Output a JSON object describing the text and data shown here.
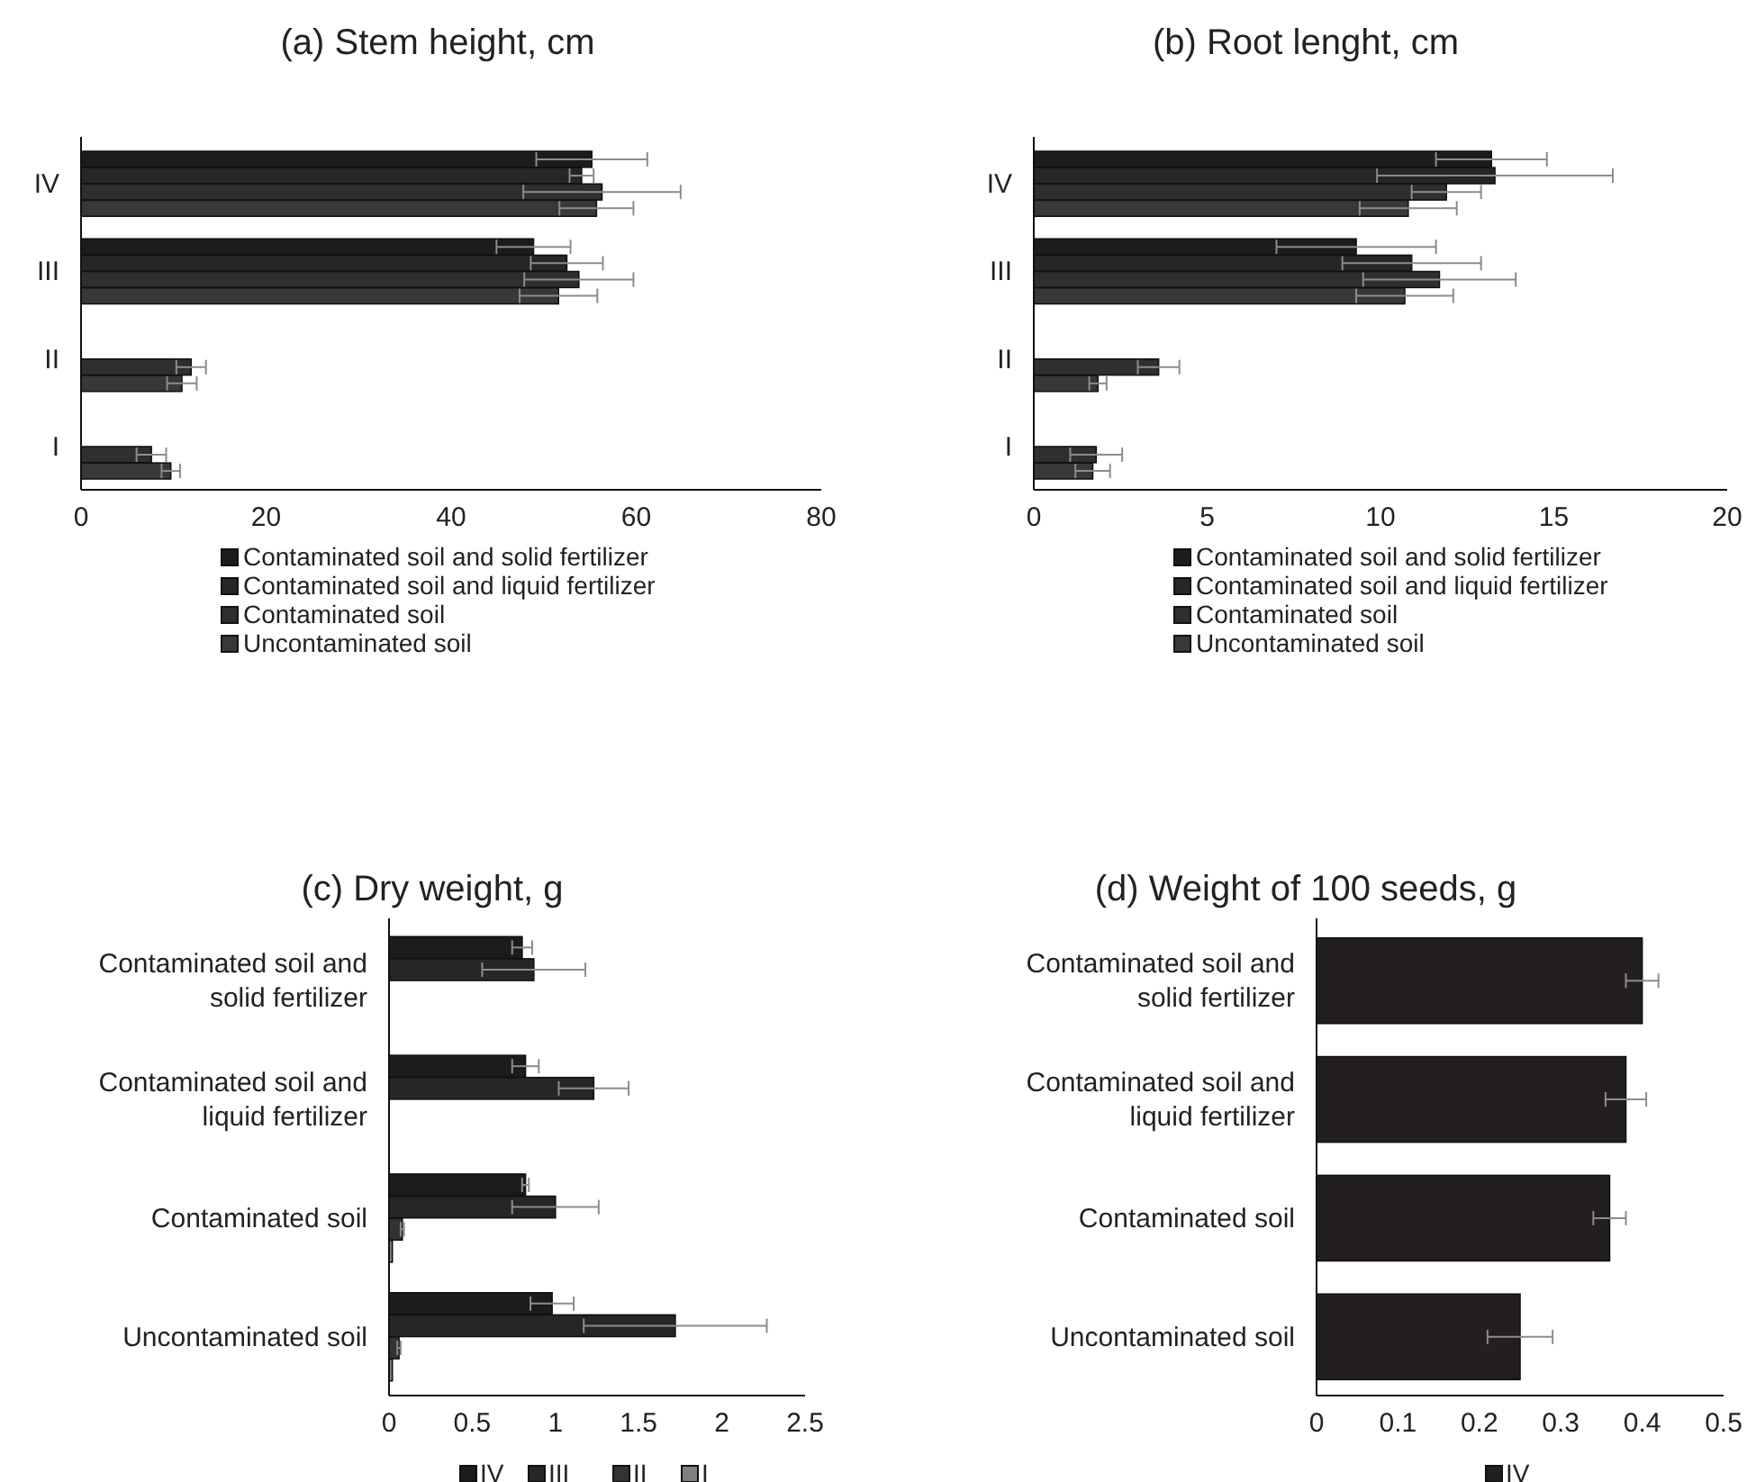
{
  "chart_data": [
    {
      "type": "bar",
      "orientation": "horizontal",
      "title": "(a) Stem height, cm",
      "categories": [
        "IV",
        "III",
        "II",
        "I"
      ],
      "xlim": [
        0,
        80
      ],
      "xticks": [
        0,
        20,
        40,
        60,
        80
      ],
      "grid": false,
      "legend": "bottom",
      "series": [
        {
          "name": "Contaminated soil and solid fertilizer",
          "color": "#1c1c1c",
          "values": [
            55.2,
            48.9,
            null,
            null
          ],
          "errors": [
            6,
            4,
            null,
            null
          ]
        },
        {
          "name": "Contaminated soil and liquid fertilizer",
          "color": "#262626",
          "values": [
            54.1,
            52.5,
            null,
            null
          ],
          "errors": [
            1.3,
            3.9,
            null,
            null
          ]
        },
        {
          "name": "Contaminated soil",
          "color": "#2e3030",
          "values": [
            56.3,
            53.8,
            11.9,
            7.6
          ],
          "errors": [
            8.5,
            5.9,
            1.6,
            1.6
          ]
        },
        {
          "name": "Uncontaminated soil",
          "color": "#383838",
          "values": [
            55.7,
            51.6,
            10.9,
            9.7
          ],
          "errors": [
            4,
            4.2,
            1.6,
            1
          ]
        }
      ]
    },
    {
      "type": "bar",
      "orientation": "horizontal",
      "title": "(b) Root lenght, cm",
      "categories": [
        "IV",
        "III",
        "II",
        "I"
      ],
      "xlim": [
        0,
        20
      ],
      "xticks": [
        0,
        5,
        10,
        15,
        20
      ],
      "grid": false,
      "legend": "bottom",
      "series": [
        {
          "name": "Contaminated soil and solid fertilizer",
          "color": "#1c1c1c",
          "values": [
            13.2,
            9.3,
            null,
            null
          ],
          "errors": [
            1.6,
            2.3,
            null,
            null
          ]
        },
        {
          "name": "Contaminated soil and liquid fertilizer",
          "color": "#262626",
          "values": [
            13.3,
            10.9,
            null,
            null
          ],
          "errors": [
            3.4,
            2,
            null,
            null
          ]
        },
        {
          "name": "Contaminated soil",
          "color": "#2e3030",
          "values": [
            11.9,
            11.7,
            3.6,
            1.8
          ],
          "errors": [
            1,
            2.2,
            0.6,
            0.75
          ]
        },
        {
          "name": "Uncontaminated soil",
          "color": "#383838",
          "values": [
            10.8,
            10.7,
            1.85,
            1.7
          ],
          "errors": [
            1.4,
            1.4,
            0.25,
            0.5
          ]
        }
      ]
    },
    {
      "type": "bar",
      "orientation": "horizontal",
      "title": "(c) Dry weight, g",
      "categories": [
        "Contaminated soil and solid fertilizer",
        "Contaminated soil and liquid fertilizer",
        "Contaminated soil",
        "Uncontaminated soil"
      ],
      "xlim": [
        0,
        2.5
      ],
      "xticks": [
        0,
        0.5,
        1,
        1.5,
        2,
        2.5
      ],
      "grid": false,
      "legend": "bottom",
      "series": [
        {
          "name": "IV",
          "color": "#1c1c1c",
          "values": [
            0.8,
            0.82,
            0.82,
            0.98
          ],
          "errors": [
            0.06,
            0.08,
            0.02,
            0.13
          ]
        },
        {
          "name": "III",
          "color": "#262626",
          "values": [
            0.87,
            1.23,
            1.0,
            1.72
          ],
          "errors": [
            0.31,
            0.21,
            0.26,
            0.55
          ]
        },
        {
          "name": "II",
          "color": "#333333",
          "values": [
            null,
            null,
            0.08,
            0.06
          ],
          "errors": [
            null,
            null,
            0.01,
            0.01
          ]
        },
        {
          "name": "I",
          "color": "#7f7f7f",
          "values": [
            null,
            null,
            0.02,
            0.02
          ],
          "errors": [
            null,
            null,
            null,
            null
          ]
        }
      ]
    },
    {
      "type": "bar",
      "orientation": "horizontal",
      "title": "(d) Weight of 100 seeds, g",
      "categories": [
        "Contaminated soil and solid fertilizer",
        "Contaminated soil and liquid fertilizer",
        "Contaminated soil",
        "Uncontaminated soil"
      ],
      "xlim": [
        0,
        0.5
      ],
      "xticks": [
        0,
        0.1,
        0.2,
        0.3,
        0.4,
        0.5
      ],
      "grid": false,
      "legend": "bottom",
      "series": [
        {
          "name": "IV",
          "color": "#231f20",
          "values": [
            0.4,
            0.38,
            0.36,
            0.25
          ],
          "errors": [
            0.02,
            0.025,
            0.02,
            0.04
          ]
        }
      ]
    }
  ]
}
